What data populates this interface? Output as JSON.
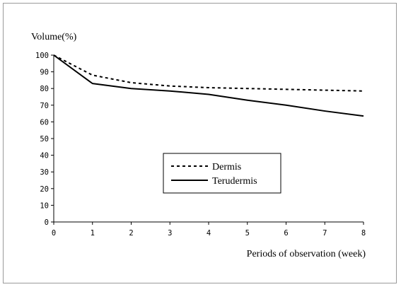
{
  "chart_data": {
    "type": "line",
    "title": "",
    "ylabel": "Volume(%)",
    "xlabel": "Periods of observation (week)",
    "x": [
      0,
      1,
      2,
      3,
      4,
      5,
      6,
      7,
      8
    ],
    "xlim": [
      0,
      8
    ],
    "ylim": [
      0,
      100
    ],
    "y_ticks": [
      0,
      10,
      20,
      30,
      40,
      50,
      60,
      70,
      80,
      90,
      100
    ],
    "grid": false,
    "legend_position": "center",
    "series": [
      {
        "name": "Dermis",
        "style": "dashed",
        "color": "#000000",
        "values": [
          100,
          88,
          83.5,
          81.5,
          80.5,
          80,
          79.5,
          79,
          78.5
        ]
      },
      {
        "name": "Terudermis",
        "style": "solid",
        "color": "#000000",
        "values": [
          100,
          83,
          80,
          78.5,
          76.5,
          73,
          70,
          66.5,
          63.5
        ]
      }
    ]
  }
}
